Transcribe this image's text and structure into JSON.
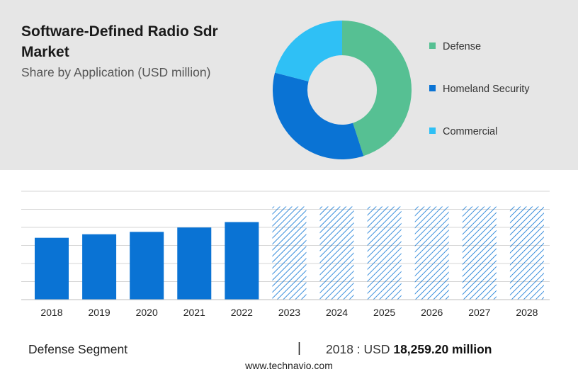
{
  "header": {
    "title": "Software-Defined Radio Sdr Market",
    "subtitle": "Share by Application (USD million)"
  },
  "footer": {
    "segment_label": "Defense Segment",
    "separator": "|",
    "value_prefix": "2018 : USD",
    "value_amount": "18,259.20 million",
    "source": "www.technavio.com"
  },
  "chart_data": [
    {
      "type": "pie",
      "variant": "donut",
      "categories": [
        "Defense",
        "Homeland Security",
        "Commercial"
      ],
      "values": [
        45,
        34,
        21
      ],
      "colors": [
        "#56c093",
        "#0a73d4",
        "#2fc0f5"
      ],
      "legend": "right"
    },
    {
      "type": "bar",
      "categories": [
        "2018",
        "2019",
        "2020",
        "2021",
        "2022",
        "2023",
        "2024",
        "2025",
        "2026",
        "2027",
        "2028"
      ],
      "values": [
        18259.2,
        19300,
        20000,
        21300,
        22900,
        27500,
        27500,
        27500,
        27500,
        27500,
        27500
      ],
      "forecast": [
        false,
        false,
        false,
        false,
        false,
        true,
        true,
        true,
        true,
        true,
        true
      ],
      "colors": {
        "actual": "#0a73d4",
        "forecast": "#0a73d4"
      },
      "ylim": [
        0,
        32000
      ],
      "grid": true
    }
  ]
}
